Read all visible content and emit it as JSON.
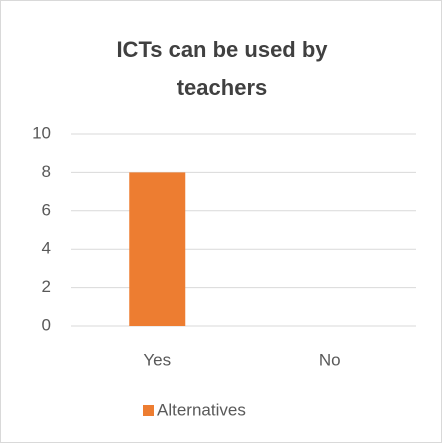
{
  "chart_data": {
    "type": "bar",
    "title": "ICTs can be used by teachers",
    "categories": [
      "Yes",
      "No"
    ],
    "series": [
      {
        "name": "Alternatives",
        "color": "#ed7d31",
        "values": [
          8,
          0
        ]
      }
    ],
    "ylim": [
      0,
      10
    ],
    "yticks": [
      0,
      2,
      4,
      6,
      8,
      10
    ],
    "grid": true,
    "legend": "bottom"
  }
}
